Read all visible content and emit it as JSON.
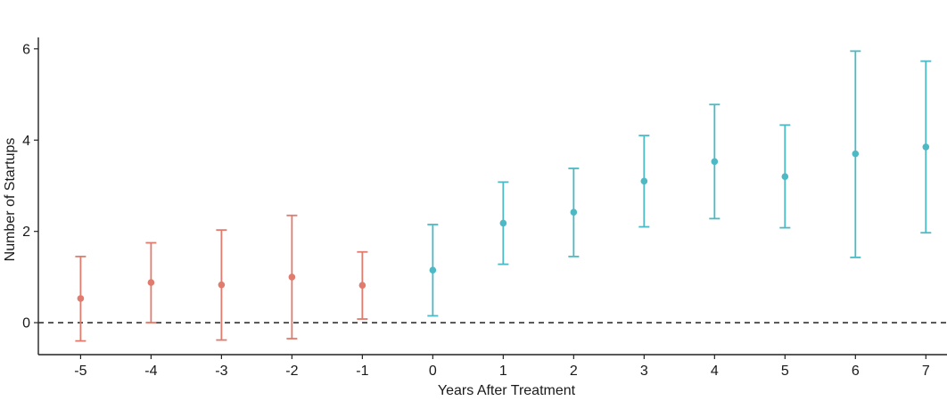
{
  "chart_data": {
    "type": "scatter",
    "subtype": "point-errorbar",
    "title": "",
    "xlabel": "Years After Treatment",
    "ylabel": "Number of Startups",
    "x_ticks": [
      "-5",
      "-4",
      "-3",
      "-2",
      "-1",
      "0",
      "1",
      "2",
      "3",
      "4",
      "5",
      "6",
      "7"
    ],
    "y_ticks": [
      "0",
      "2",
      "4",
      "6"
    ],
    "xlim": [
      -5.6,
      7.3
    ],
    "ylim": [
      -0.7,
      6.25
    ],
    "reference_line": {
      "y": 0,
      "style": "dashed"
    },
    "grid": false,
    "legend": "none",
    "series": [
      {
        "group": "pre-treatment",
        "color": "#E07B6D",
        "points": [
          {
            "x": -5,
            "y": 0.53,
            "lower": -0.4,
            "upper": 1.45
          },
          {
            "x": -4,
            "y": 0.88,
            "lower": 0.0,
            "upper": 1.75
          },
          {
            "x": -3,
            "y": 0.83,
            "lower": -0.38,
            "upper": 2.03
          },
          {
            "x": -2,
            "y": 1.0,
            "lower": -0.35,
            "upper": 2.35
          },
          {
            "x": -1,
            "y": 0.82,
            "lower": 0.08,
            "upper": 1.55
          }
        ]
      },
      {
        "group": "post-treatment",
        "color": "#4CB9C4",
        "points": [
          {
            "x": 0,
            "y": 1.15,
            "lower": 0.15,
            "upper": 2.15
          },
          {
            "x": 1,
            "y": 2.18,
            "lower": 1.28,
            "upper": 3.08
          },
          {
            "x": 2,
            "y": 2.42,
            "lower": 1.45,
            "upper": 3.38
          },
          {
            "x": 3,
            "y": 3.1,
            "lower": 2.1,
            "upper": 4.1
          },
          {
            "x": 4,
            "y": 3.53,
            "lower": 2.28,
            "upper": 4.78
          },
          {
            "x": 5,
            "y": 3.2,
            "lower": 2.08,
            "upper": 4.33
          },
          {
            "x": 6,
            "y": 3.7,
            "lower": 1.43,
            "upper": 5.95
          },
          {
            "x": 7,
            "y": 3.85,
            "lower": 1.97,
            "upper": 5.73
          }
        ]
      }
    ]
  }
}
